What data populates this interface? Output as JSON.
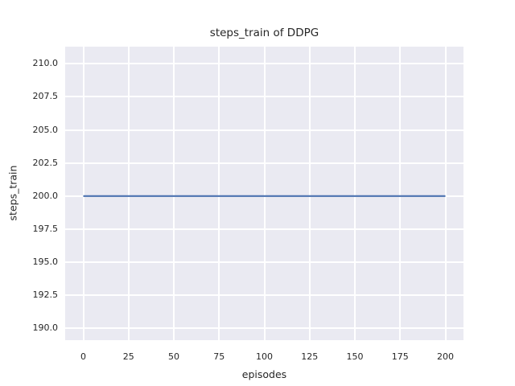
{
  "chart_data": {
    "type": "line",
    "title": "steps_train of DDPG",
    "xlabel": "episodes",
    "ylabel": "steps_train",
    "x_tick_values": [
      0,
      25,
      50,
      75,
      100,
      125,
      150,
      175,
      200
    ],
    "x_tick_labels": [
      "0",
      "25",
      "50",
      "75",
      "100",
      "125",
      "150",
      "175",
      "200"
    ],
    "y_tick_values": [
      190.0,
      192.5,
      195.0,
      197.5,
      200.0,
      202.5,
      205.0,
      207.5,
      210.0
    ],
    "y_tick_labels": [
      "190.0",
      "192.5",
      "195.0",
      "197.5",
      "200.0",
      "202.5",
      "205.0",
      "207.5",
      "210.0"
    ],
    "xlim": [
      -10,
      210
    ],
    "ylim": [
      189.1,
      211.3
    ],
    "grid": true,
    "legend": "none",
    "colors": {
      "axes_background": "#eaeaf2",
      "grid_color": "#ffffff",
      "text_color": "#262626",
      "line_color": "#4c72b0"
    },
    "series": [
      {
        "name": "steps_train",
        "color": "#4c72b0",
        "x": [
          0,
          200
        ],
        "y": [
          200,
          200
        ],
        "note": "constant horizontal line at steps_train = 200 across all episodes"
      }
    ]
  }
}
